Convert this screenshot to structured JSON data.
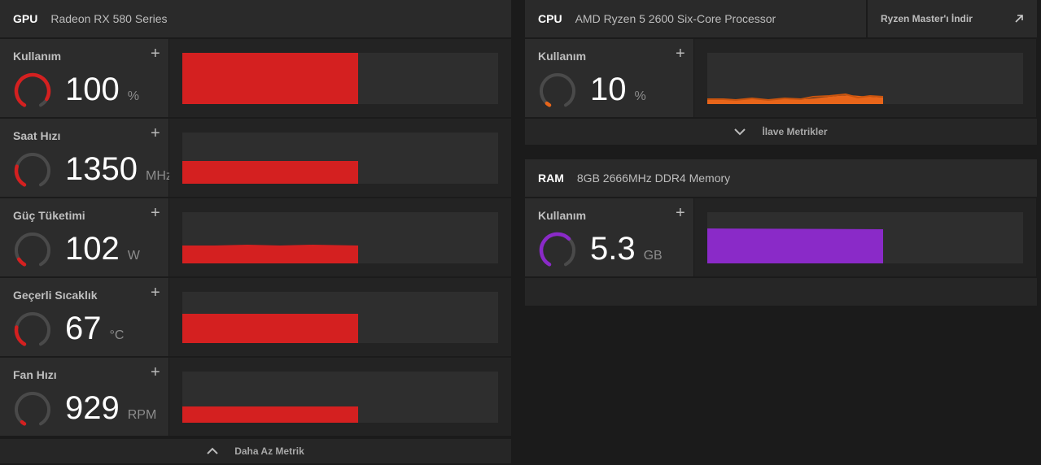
{
  "gpu": {
    "label": "GPU",
    "name": "Radeon RX 580 Series",
    "metrics": [
      {
        "label": "Kullanım",
        "value": "100",
        "unit": "%"
      },
      {
        "label": "Saat Hızı",
        "value": "1350",
        "unit": "MHz"
      },
      {
        "label": "Güç Tüketimi",
        "value": "102",
        "unit": "W"
      },
      {
        "label": "Geçerli Sıcaklık",
        "value": "67",
        "unit": "°C"
      },
      {
        "label": "Fan Hızı",
        "value": "929",
        "unit": "RPM"
      }
    ],
    "footer": "Daha Az Metrik"
  },
  "cpu": {
    "label": "CPU",
    "name": "AMD Ryzen 5 2600 Six-Core Processor",
    "link": "Ryzen Master'ı İndir",
    "metrics": [
      {
        "label": "Kullanım",
        "value": "10",
        "unit": "%"
      }
    ],
    "footer": "İlave Metrikler"
  },
  "ram": {
    "label": "RAM",
    "name": "8GB 2666MHz DDR4 Memory",
    "metrics": [
      {
        "label": "Kullanım",
        "value": "5.3",
        "unit": "GB"
      }
    ]
  }
}
